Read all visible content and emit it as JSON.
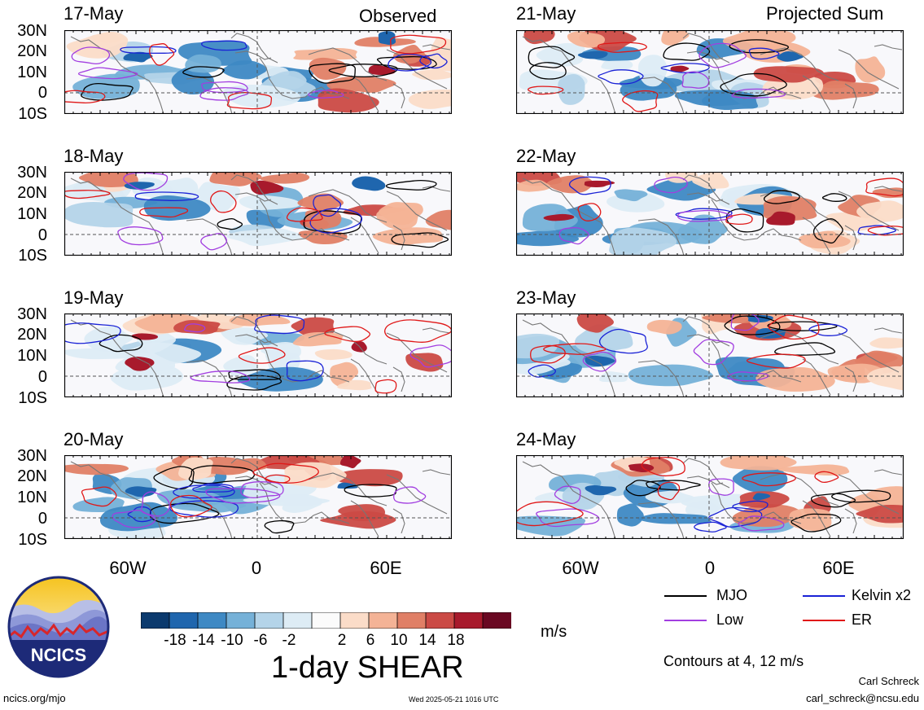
{
  "columns": {
    "left_title": "Observed",
    "right_title": "Projected Sum"
  },
  "panels": [
    {
      "date": "17-May",
      "column": "left",
      "row": 0
    },
    {
      "date": "18-May",
      "column": "left",
      "row": 1
    },
    {
      "date": "19-May",
      "column": "left",
      "row": 2
    },
    {
      "date": "20-May",
      "column": "left",
      "row": 3
    },
    {
      "date": "21-May",
      "column": "right",
      "row": 0
    },
    {
      "date": "22-May",
      "column": "right",
      "row": 1
    },
    {
      "date": "23-May",
      "column": "right",
      "row": 2
    },
    {
      "date": "24-May",
      "column": "right",
      "row": 3
    }
  ],
  "lat_labels": [
    "30N",
    "20N",
    "10N",
    "0",
    "10S"
  ],
  "lon_labels": [
    "60W",
    "0",
    "60E"
  ],
  "colorbar": {
    "labels": [
      "-18",
      "-14",
      "-10",
      "-6",
      "-2",
      "2",
      "6",
      "10",
      "14",
      "18"
    ],
    "colors": [
      "#0b3a6e",
      "#1f66ae",
      "#3e89c4",
      "#75b1d8",
      "#b4d4e9",
      "#ddecf5",
      "#fbfbfb",
      "#fbdcc8",
      "#f4b396",
      "#e07f66",
      "#cb4a45",
      "#a81a2c",
      "#6a0822"
    ],
    "units": "m/s"
  },
  "title": "1-day SHEAR",
  "legend": {
    "items": [
      {
        "label": "MJO",
        "color": "#000000"
      },
      {
        "label": "Kelvin x2",
        "color": "#1a22d6"
      },
      {
        "label": "Low",
        "color": "#a23ee0"
      },
      {
        "label": "ER",
        "color": "#e01818"
      }
    ],
    "contours_note": "Contours at 4, 12 m/s"
  },
  "logo": {
    "text": "NCICS"
  },
  "footer": {
    "url": "ncics.org/mjo",
    "timestamp": "Wed 2025-05-21 1016 UTC",
    "author": "Carl Schreck",
    "email": "carl_schreck@ncsu.edu"
  }
}
